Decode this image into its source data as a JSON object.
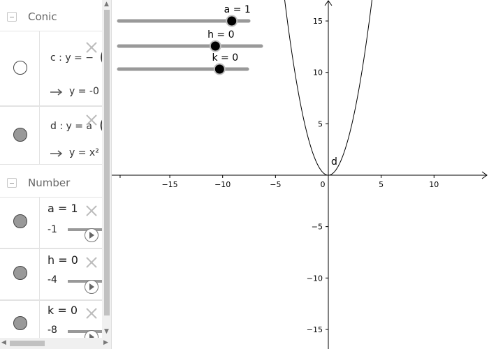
{
  "algebra": {
    "conic_group": {
      "label": "Conic"
    },
    "conic_items": [
      {
        "definition": "c : y = −",
        "value": "y = -0",
        "visible": false
      },
      {
        "definition": "d : y = a",
        "value": "y = x²",
        "visible": true
      }
    ],
    "number_group": {
      "label": "Number"
    },
    "number_items": [
      {
        "label": "a = 1",
        "min": "-1"
      },
      {
        "label": "h = 0",
        "min": "-4"
      },
      {
        "label": "k = 0",
        "min": "-8"
      }
    ]
  },
  "graphics": {
    "sliders": [
      {
        "label": "a = 1",
        "value": 1,
        "min": -1,
        "max": 1
      },
      {
        "label": "h = 0",
        "value": 0,
        "min": -4,
        "max": 4
      },
      {
        "label": "k = 0",
        "value": 0,
        "min": -8,
        "max": 8
      }
    ],
    "x_ticks": [
      "−15",
      "−10",
      "−5",
      "0",
      "5",
      "10"
    ],
    "y_ticks": [
      "15",
      "10",
      "5",
      "−5",
      "−10",
      "−15"
    ],
    "curve_label": "d",
    "axis_color": "#000000",
    "slider_track_color": "#999999",
    "slider_point_color": "#000000"
  },
  "chart_data": {
    "type": "line",
    "series": [
      {
        "name": "d",
        "function": "y = x²",
        "x": [
          -5,
          -4,
          -3,
          -2,
          -1,
          0,
          1,
          2,
          3,
          4,
          5
        ],
        "y": [
          25,
          16,
          9,
          4,
          1,
          0,
          1,
          4,
          9,
          16,
          25
        ]
      }
    ],
    "xlim": [
      -20,
      15
    ],
    "ylim": [
      -17,
      17
    ],
    "x_tick_labels": [
      -15,
      -10,
      -5,
      0,
      5,
      10
    ],
    "y_tick_labels": [
      -15,
      -10,
      -5,
      5,
      10,
      15
    ],
    "grid": false
  }
}
